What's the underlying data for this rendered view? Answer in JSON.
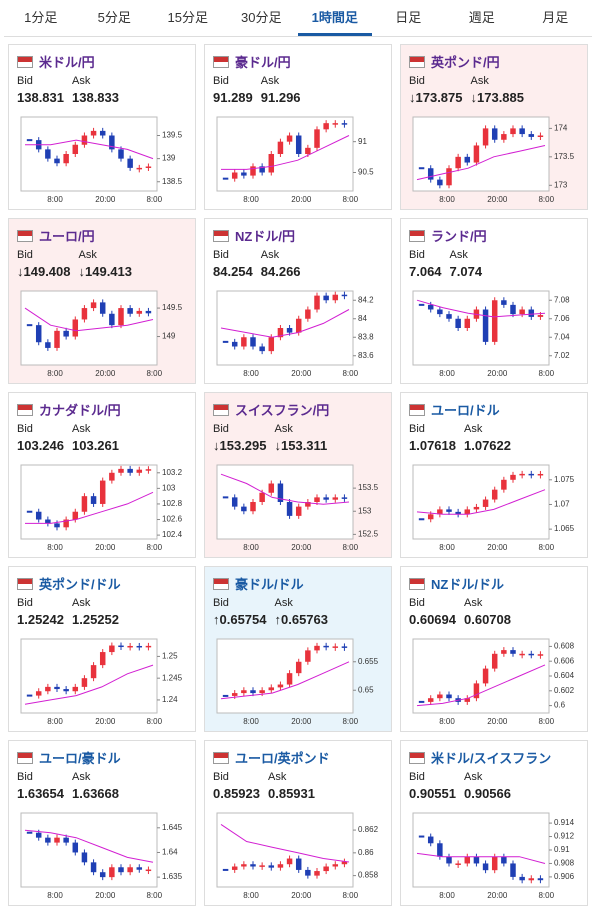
{
  "tabs": [
    "1分足",
    "5分足",
    "15分足",
    "30分足",
    "1時間足",
    "日足",
    "週足",
    "月足"
  ],
  "active_tab": 4,
  "labels": {
    "bid": "Bid",
    "ask": "Ask"
  },
  "cards": [
    {
      "name": "米ドル/円",
      "bid": "138.831",
      "ask": "138.833",
      "color": "#5b2a8f",
      "ylim": [
        138.3,
        139.9
      ],
      "yticks": [
        139.5,
        139,
        138.5
      ],
      "xlabels": [
        "8:00",
        "20:00",
        "8:00"
      ],
      "closes": [
        139.4,
        139.2,
        139.0,
        138.9,
        139.1,
        139.3,
        139.5,
        139.6,
        139.5,
        139.2,
        139.0,
        138.8,
        138.8,
        138.83
      ],
      "ma": [
        139.3,
        139.3,
        139.4,
        139.3,
        139.2,
        139.0
      ]
    },
    {
      "name": "豪ドル/円",
      "bid": "91.289",
      "ask": "91.296",
      "color": "#5b2a8f",
      "ylim": [
        90.2,
        91.4
      ],
      "yticks": [
        91,
        90.5
      ],
      "xlabels": [
        "8:00",
        "20:00",
        "8:00"
      ],
      "closes": [
        90.4,
        90.5,
        90.45,
        90.6,
        90.5,
        90.8,
        91.0,
        91.1,
        90.8,
        90.9,
        91.2,
        91.3,
        91.3,
        91.29
      ],
      "ma": [
        90.55,
        90.55,
        90.6,
        90.7,
        90.9,
        91.1
      ]
    },
    {
      "name": "英ポンド/円",
      "bid": "↓173.875",
      "ask": "↓173.885",
      "state": "down",
      "color": "#5b2a8f",
      "ylim": [
        172.9,
        174.2
      ],
      "yticks": [
        174,
        173.5,
        173
      ],
      "xlabels": [
        "8:00",
        "20:00",
        "8:00"
      ],
      "closes": [
        173.3,
        173.1,
        173.0,
        173.3,
        173.5,
        173.4,
        173.7,
        174.0,
        173.8,
        173.9,
        174.0,
        173.9,
        173.85,
        173.875
      ],
      "ma": [
        173.1,
        173.2,
        173.3,
        173.5,
        173.6,
        173.7
      ]
    },
    {
      "name": "ユーロ/円",
      "bid": "↓149.408",
      "ask": "↓149.413",
      "state": "down",
      "color": "#5b2a8f",
      "ylim": [
        148.5,
        149.8
      ],
      "yticks": [
        149.5,
        149
      ],
      "xlabels": [
        "8:00",
        "20:00",
        "8:00"
      ],
      "closes": [
        149.2,
        148.9,
        148.8,
        149.1,
        149.0,
        149.3,
        149.5,
        149.6,
        149.4,
        149.2,
        149.5,
        149.4,
        149.45,
        149.408
      ],
      "ma": [
        149.5,
        149.2,
        149.1,
        149.15,
        149.2,
        149.3
      ]
    },
    {
      "name": "NZドル/円",
      "bid": "84.254",
      "ask": "84.266",
      "color": "#5b2a8f",
      "ylim": [
        83.5,
        84.3
      ],
      "yticks": [
        84.2,
        84,
        83.8,
        83.6
      ],
      "xlabels": [
        "8:00",
        "20:00",
        "8:00"
      ],
      "closes": [
        83.75,
        83.7,
        83.8,
        83.7,
        83.65,
        83.8,
        83.9,
        83.85,
        84.0,
        84.1,
        84.25,
        84.2,
        84.26,
        84.254
      ],
      "ma": [
        83.9,
        83.85,
        83.8,
        83.85,
        83.95,
        84.1
      ]
    },
    {
      "name": "ランド/円",
      "bid": "7.064",
      "ask": "7.074",
      "color": "#5b2a8f",
      "ylim": [
        7.01,
        7.09
      ],
      "yticks": [
        7.08,
        7.06,
        7.04,
        7.02
      ],
      "xlabels": [
        "8:00",
        "20:00",
        "8:00"
      ],
      "closes": [
        7.075,
        7.07,
        7.065,
        7.06,
        7.05,
        7.06,
        7.07,
        7.035,
        7.08,
        7.075,
        7.065,
        7.07,
        7.062,
        7.064
      ],
      "ma": [
        7.08,
        7.072,
        7.066,
        7.062,
        7.064,
        7.066
      ]
    },
    {
      "name": "カナダドル/円",
      "bid": "103.246",
      "ask": "103.261",
      "color": "#5b2a8f",
      "ylim": [
        102.35,
        103.3
      ],
      "yticks": [
        103.2,
        103,
        102.8,
        102.6,
        102.4
      ],
      "xlabels": [
        "8:00",
        "20:00",
        "8:00"
      ],
      "closes": [
        102.7,
        102.6,
        102.55,
        102.5,
        102.6,
        102.7,
        102.9,
        102.8,
        103.1,
        103.2,
        103.25,
        103.2,
        103.24,
        103.246
      ],
      "ma": [
        102.55,
        102.55,
        102.6,
        102.7,
        102.8,
        102.95
      ]
    },
    {
      "name": "スイスフラン/円",
      "bid": "↓153.295",
      "ask": "↓153.311",
      "state": "down",
      "color": "#5b2a8f",
      "ylim": [
        152.4,
        154
      ],
      "yticks": [
        153.5,
        153,
        152.5
      ],
      "xlabels": [
        "8:00",
        "20:00",
        "8:00"
      ],
      "closes": [
        153.3,
        153.1,
        153.0,
        153.2,
        153.4,
        153.6,
        153.2,
        152.9,
        153.1,
        153.2,
        153.3,
        153.25,
        153.3,
        153.295
      ],
      "ma": [
        153.8,
        153.6,
        153.3,
        153.2,
        153.15,
        153.2
      ]
    },
    {
      "name": "ユーロ/ドル",
      "bid": "1.07618",
      "ask": "1.07622",
      "color": "#1a5aa3",
      "ylim": [
        1.063,
        1.078
      ],
      "yticks": [
        1.075,
        1.07,
        1.065
      ],
      "xlabels": [
        "8:00",
        "20:00",
        "8:00"
      ],
      "closes": [
        1.067,
        1.068,
        1.069,
        1.0685,
        1.068,
        1.069,
        1.0695,
        1.071,
        1.073,
        1.075,
        1.076,
        1.0762,
        1.0761,
        1.07618
      ],
      "ma": [
        1.0685,
        1.068,
        1.068,
        1.069,
        1.071,
        1.073
      ]
    },
    {
      "name": "英ポンド/ドル",
      "bid": "1.25242",
      "ask": "1.25252",
      "color": "#1a5aa3",
      "ylim": [
        1.237,
        1.254
      ],
      "yticks": [
        1.25,
        1.245,
        1.24
      ],
      "xlabels": [
        "8:00",
        "20:00",
        "8:00"
      ],
      "closes": [
        1.241,
        1.242,
        1.243,
        1.2425,
        1.242,
        1.243,
        1.245,
        1.248,
        1.251,
        1.2525,
        1.2523,
        1.2524,
        1.2522,
        1.25242
      ],
      "ma": [
        1.239,
        1.24,
        1.241,
        1.243,
        1.246,
        1.248
      ]
    },
    {
      "name": "豪ドル/ドル",
      "bid": "↑0.65754",
      "ask": "↑0.65763",
      "state": "up",
      "color": "#1a5aa3",
      "ylim": [
        0.646,
        0.659
      ],
      "yticks": [
        0.655,
        0.65
      ],
      "xlabels": [
        "8:00",
        "20:00",
        "8:00"
      ],
      "closes": [
        0.649,
        0.6495,
        0.65,
        0.6495,
        0.65,
        0.6505,
        0.651,
        0.653,
        0.655,
        0.657,
        0.6578,
        0.6576,
        0.6577,
        0.65754
      ],
      "ma": [
        0.6485,
        0.649,
        0.6495,
        0.651,
        0.653,
        0.655
      ]
    },
    {
      "name": "NZドル/ドル",
      "bid": "0.60694",
      "ask": "0.60708",
      "color": "#1a5aa3",
      "ylim": [
        0.599,
        0.609
      ],
      "yticks": [
        0.608,
        0.606,
        0.604,
        0.602,
        0.6
      ],
      "xlabels": [
        "8:00",
        "20:00",
        "8:00"
      ],
      "closes": [
        0.6005,
        0.601,
        0.6015,
        0.601,
        0.6005,
        0.601,
        0.603,
        0.605,
        0.607,
        0.6075,
        0.607,
        0.607,
        0.6069,
        0.60694
      ],
      "ma": [
        0.6,
        0.6003,
        0.601,
        0.6025,
        0.604,
        0.6055
      ]
    },
    {
      "name": "ユーロ/豪ドル",
      "bid": "1.63654",
      "ask": "1.63668",
      "color": "#1a5aa3",
      "ylim": [
        1.633,
        1.648
      ],
      "yticks": [
        1.645,
        1.64,
        1.635
      ],
      "xlabels": [
        "8:00",
        "20:00",
        "8:00"
      ],
      "closes": [
        1.644,
        1.643,
        1.642,
        1.643,
        1.642,
        1.64,
        1.638,
        1.636,
        1.635,
        1.637,
        1.636,
        1.637,
        1.6365,
        1.63654
      ],
      "ma": [
        1.6445,
        1.644,
        1.643,
        1.641,
        1.639,
        1.638
      ]
    },
    {
      "name": "ユーロ/英ポンド",
      "bid": "0.85923",
      "ask": "0.85931",
      "color": "#1a5aa3",
      "ylim": [
        0.857,
        0.8635
      ],
      "yticks": [
        0.862,
        0.86,
        0.858
      ],
      "xlabels": [
        "8:00",
        "20:00",
        "8:00"
      ],
      "closes": [
        0.8585,
        0.8588,
        0.859,
        0.8588,
        0.8589,
        0.8587,
        0.859,
        0.8595,
        0.8585,
        0.858,
        0.8584,
        0.8588,
        0.859,
        0.85923
      ],
      "ma": [
        0.8625,
        0.861,
        0.8605,
        0.86,
        0.8595,
        0.8592
      ]
    },
    {
      "name": "米ドル/スイスフラン",
      "bid": "0.90551",
      "ask": "0.90566",
      "color": "#1a5aa3",
      "ylim": [
        0.9045,
        0.9155
      ],
      "yticks": [
        0.914,
        0.912,
        0.91,
        0.908,
        0.906
      ],
      "xlabels": [
        "8:00",
        "20:00",
        "8:00"
      ],
      "closes": [
        0.912,
        0.911,
        0.909,
        0.908,
        0.908,
        0.909,
        0.908,
        0.907,
        0.909,
        0.908,
        0.906,
        0.9055,
        0.9058,
        0.90551
      ],
      "ma": [
        0.9095,
        0.909,
        0.909,
        0.909,
        0.909,
        0.908
      ]
    }
  ]
}
